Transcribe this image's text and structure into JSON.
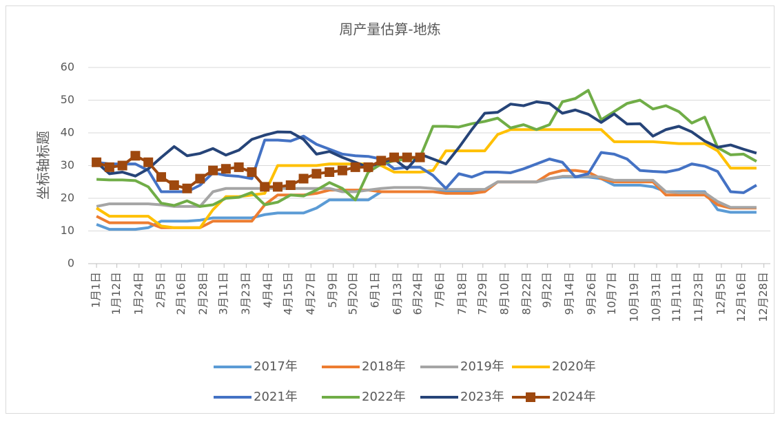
{
  "chart_data": {
    "type": "line",
    "title": "周产量估算-地炼",
    "y_label": "坐标轴标题",
    "x": [
      0,
      7,
      14,
      21,
      28,
      35,
      42,
      49,
      56,
      63,
      70,
      77,
      84,
      91,
      98,
      105,
      112,
      119,
      126,
      133,
      140,
      147,
      154,
      161,
      168,
      175,
      182,
      189,
      196,
      203,
      210,
      217,
      224,
      231,
      238,
      245,
      252,
      259,
      266,
      273,
      280,
      287,
      294,
      301,
      308,
      315,
      322,
      329,
      336,
      343,
      350,
      357
    ],
    "xlim": [
      -4.5,
      364.5
    ],
    "xticks": [
      {
        "value": 0,
        "label": "1月1日"
      },
      {
        "value": 11,
        "label": "1月12日"
      },
      {
        "value": 23,
        "label": "1月24日"
      },
      {
        "value": 35,
        "label": "2月5日"
      },
      {
        "value": 46,
        "label": "2月16日"
      },
      {
        "value": 58,
        "label": "2月28日"
      },
      {
        "value": 69,
        "label": "3月11日"
      },
      {
        "value": 81,
        "label": "3月23日"
      },
      {
        "value": 93,
        "label": "4月4日"
      },
      {
        "value": 104,
        "label": "4月15日"
      },
      {
        "value": 116,
        "label": "4月27日"
      },
      {
        "value": 128,
        "label": "5月9日"
      },
      {
        "value": 139,
        "label": "5月20日"
      },
      {
        "value": 151,
        "label": "6月1日"
      },
      {
        "value": 163,
        "label": "6月13日"
      },
      {
        "value": 174,
        "label": "6月24日"
      },
      {
        "value": 186,
        "label": "7月6日"
      },
      {
        "value": 198,
        "label": "7月18日"
      },
      {
        "value": 209,
        "label": "7月29日"
      },
      {
        "value": 221,
        "label": "8月10日"
      },
      {
        "value": 233,
        "label": "8月22日"
      },
      {
        "value": 244,
        "label": "9月2日"
      },
      {
        "value": 256,
        "label": "9月14日"
      },
      {
        "value": 268,
        "label": "9月26日"
      },
      {
        "value": 279,
        "label": "10月7日"
      },
      {
        "value": 291,
        "label": "10月19日"
      },
      {
        "value": 303,
        "label": "10月31日"
      },
      {
        "value": 314,
        "label": "11月11日"
      },
      {
        "value": 326,
        "label": "11月23日"
      },
      {
        "value": 338,
        "label": "12月5日"
      },
      {
        "value": 349,
        "label": "12月16日"
      },
      {
        "value": 361,
        "label": "12月28日"
      }
    ],
    "ylim": [
      0,
      60
    ],
    "yticks": [
      0,
      10,
      20,
      30,
      40,
      50,
      60
    ],
    "grid": true,
    "series": [
      {
        "name": "2017年",
        "color": "#5b9bd5",
        "values": [
          12,
          10.5,
          10.5,
          10.5,
          11,
          13,
          13,
          13,
          13.3,
          14,
          14,
          14,
          14,
          15,
          15.5,
          15.5,
          15.5,
          17,
          19.5,
          19.5,
          19.5,
          19.5,
          22,
          22,
          22,
          22,
          22,
          22,
          22,
          22,
          22.5,
          25,
          25,
          25,
          25,
          26,
          26.5,
          26.5,
          26.5,
          26,
          24,
          24,
          24,
          23.5,
          22,
          22,
          22,
          22,
          16.5,
          15.7,
          15.7,
          15.7
        ]
      },
      {
        "name": "2018年",
        "color": "#ed7d31",
        "values": [
          14.5,
          12.5,
          12.5,
          12.5,
          12.5,
          11,
          11,
          11,
          11,
          13,
          13,
          13,
          13,
          18,
          21,
          21,
          21,
          21.5,
          22.5,
          22.5,
          22.5,
          22.5,
          22,
          22,
          22,
          22,
          22,
          21.5,
          21.5,
          21.5,
          22,
          25,
          25,
          25,
          25,
          27.5,
          28.5,
          28.5,
          28,
          26,
          25,
          25,
          25,
          25,
          21,
          21,
          21,
          21,
          18,
          17,
          17,
          17
        ]
      },
      {
        "name": "2019年",
        "color": "#a5a5a5",
        "values": [
          17.5,
          18.3,
          18.3,
          18.3,
          18.3,
          18,
          17.5,
          17.5,
          17.5,
          22,
          23,
          23,
          23,
          23,
          23,
          23,
          23,
          23,
          23,
          22,
          22,
          22.5,
          23,
          23.3,
          23.3,
          23.3,
          23,
          22.7,
          22.7,
          22.7,
          22.7,
          25,
          25,
          25,
          25,
          26,
          26.7,
          26.7,
          26.7,
          26.5,
          25.5,
          25.5,
          25.5,
          25.5,
          22,
          21.7,
          21.7,
          21.7,
          19,
          17.2,
          17.2,
          17.2
        ]
      },
      {
        "name": "2020年",
        "color": "#ffc000",
        "values": [
          17,
          14.5,
          14.5,
          14.5,
          14.5,
          11.5,
          11,
          11,
          11,
          16.5,
          20.5,
          20.5,
          21,
          21.5,
          30,
          30,
          30,
          30,
          30.5,
          30.5,
          30.5,
          30.5,
          30,
          28,
          28,
          28,
          28.5,
          34.5,
          34.5,
          34.5,
          34.5,
          39.5,
          41,
          41,
          41,
          41,
          41,
          41,
          41,
          41,
          37.3,
          37.3,
          37.3,
          37.3,
          37,
          36.7,
          36.7,
          36.7,
          34.5,
          29.2,
          29.2,
          29.2
        ]
      },
      {
        "name": "2021年",
        "color": "#4472c4",
        "values": [
          31,
          30.5,
          30.5,
          30.5,
          28.5,
          22,
          22,
          22,
          24,
          27.8,
          27,
          26.7,
          26,
          37.8,
          37.8,
          37.5,
          39,
          36.5,
          35,
          33.5,
          33,
          32.8,
          32,
          29,
          29.5,
          29.5,
          27,
          23,
          27.5,
          26.5,
          28,
          28,
          27.8,
          29,
          30.5,
          32,
          31,
          26.5,
          27.5,
          34,
          33.5,
          32,
          28.5,
          28.2,
          28,
          28.8,
          30.5,
          29.8,
          28.2,
          22,
          21.7,
          24
        ]
      },
      {
        "name": "2022年",
        "color": "#70ad47",
        "values": [
          25.8,
          25.6,
          25.6,
          25.4,
          23.5,
          18.5,
          17.8,
          19.2,
          17.5,
          18,
          20,
          20.3,
          21.8,
          18,
          18.8,
          21,
          20.7,
          22.5,
          24.8,
          23,
          19.5,
          28,
          30.5,
          31.5,
          32,
          32.5,
          42,
          42,
          41.8,
          42.8,
          43.5,
          44.5,
          41.5,
          42.5,
          41,
          42.5,
          49.5,
          50.5,
          53,
          44,
          46.5,
          49,
          50,
          47.3,
          48.3,
          46.5,
          43,
          44.8,
          35.5,
          33.3,
          33.5,
          31.3
        ]
      },
      {
        "name": "2023年",
        "color": "#264478",
        "values": [
          31,
          27.5,
          28,
          26.8,
          29,
          32.5,
          35.8,
          33,
          33.7,
          35.2,
          33.2,
          34.7,
          38,
          39.3,
          40.3,
          40.2,
          38,
          33.5,
          34.3,
          32.5,
          31,
          29.5,
          31,
          32,
          29,
          33.5,
          32,
          30.5,
          35.5,
          41,
          46,
          46.3,
          48.8,
          48.3,
          49.5,
          49,
          46,
          47,
          45.7,
          43.2,
          45.8,
          42.7,
          42.8,
          39,
          41,
          42,
          40.3,
          37.5,
          35.6,
          36.3,
          35,
          33.8
        ]
      },
      {
        "name": "2024年",
        "color": "#9e480e",
        "marker": "square",
        "values": [
          31,
          29.5,
          30,
          33,
          31,
          26.5,
          24,
          23,
          26,
          28.5,
          29,
          29.5,
          28,
          23.5,
          23.5,
          24,
          26,
          27.5,
          28,
          28.5,
          29.5,
          29.5,
          31.5,
          32.5,
          32.5,
          32.5,
          null,
          null,
          null,
          null,
          null,
          null,
          null,
          null,
          null,
          null,
          null,
          null,
          null,
          null,
          null,
          null,
          null,
          null,
          null,
          null,
          null,
          null,
          null,
          null,
          null,
          null
        ]
      }
    ]
  }
}
